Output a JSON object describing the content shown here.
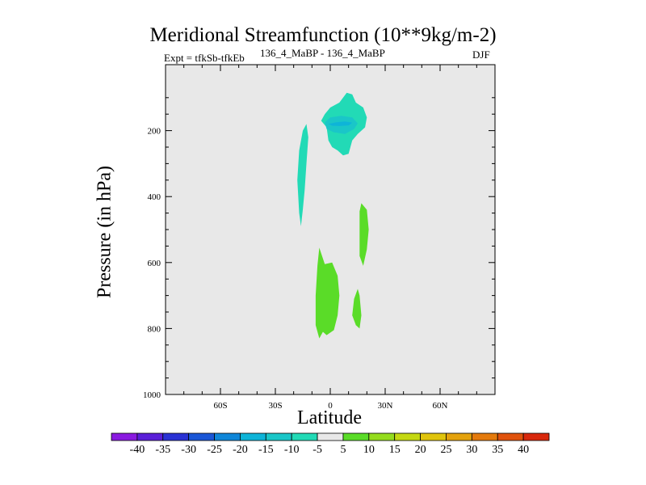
{
  "header": {
    "title": "Meridional Streamfunction (10**9kg/m-2)",
    "subtitle": "136_4_MaBP - 136_4_MaBP",
    "experiment": "Expt = tfkSb-tfkEb",
    "season": "DJF"
  },
  "colors": {
    "background": "#e8e8e8",
    "neg_5_0": "#22dab6",
    "neg_10_5": "#1ac6c8",
    "neg_15_10": "#0eb4d8",
    "pos_5_10": "#5adc28"
  },
  "chart_data": {
    "type": "heatmap",
    "title": "Meridional Streamfunction (10**9kg/m-2)",
    "xlabel": "Latitude",
    "ylabel": "Pressure (in hPa)",
    "xlim": [
      -90,
      90
    ],
    "ylim": [
      1000,
      0
    ],
    "x_ticks": [
      -60,
      -30,
      0,
      30,
      60
    ],
    "x_tick_labels": [
      "60S",
      "30S",
      "0",
      "30N",
      "60N"
    ],
    "y_ticks": [
      200,
      400,
      600,
      800,
      1000
    ],
    "y_tick_labels": [
      "200",
      "400",
      "600",
      "800",
      "1000"
    ],
    "colorbar_levels": [
      -40,
      -35,
      -30,
      -25,
      -20,
      -15,
      -10,
      -5,
      5,
      10,
      15,
      20,
      25,
      30,
      35,
      40
    ],
    "colorbar_labels": [
      "-40",
      "-35",
      "-30",
      "-25",
      "-20",
      "-15",
      "-10",
      "-5",
      "5",
      "10",
      "15",
      "20",
      "25",
      "30",
      "35",
      "40"
    ],
    "colorbar_colors": [
      "#8a1ae0",
      "#5a1fd8",
      "#2a32d4",
      "#1a56d6",
      "#0f86d8",
      "#0eb4d8",
      "#1ac6c8",
      "#22dab6",
      "#e8e8e8",
      "#5adc28",
      "#94dc1e",
      "#c4d812",
      "#e0c40c",
      "#e4a20c",
      "#e47a0c",
      "#e0520c",
      "#d8280c"
    ],
    "regions": [
      {
        "category": "-5 to -10",
        "color_key": "neg_5_0",
        "points": [
          [
            -2,
            190
          ],
          [
            -5,
            170
          ],
          [
            -3,
            150
          ],
          [
            0,
            130
          ],
          [
            5,
            115
          ],
          [
            9,
            85
          ],
          [
            12,
            90
          ],
          [
            14,
            115
          ],
          [
            18,
            130
          ],
          [
            20,
            160
          ],
          [
            19,
            190
          ],
          [
            15,
            210
          ],
          [
            12,
            230
          ],
          [
            10,
            270
          ],
          [
            7,
            275
          ],
          [
            4,
            260
          ],
          [
            1,
            250
          ],
          [
            -1,
            230
          ]
        ]
      },
      {
        "category": "-10 to -15",
        "color_key": "neg_10_5",
        "points": [
          [
            -3,
            175
          ],
          [
            0,
            160
          ],
          [
            6,
            155
          ],
          [
            12,
            160
          ],
          [
            15,
            178
          ],
          [
            13,
            195
          ],
          [
            8,
            210
          ],
          [
            2,
            205
          ],
          [
            -2,
            195
          ]
        ]
      },
      {
        "category": "-15 to -20",
        "color_key": "neg_15_10",
        "points": [
          [
            -1,
            180
          ],
          [
            3,
            175
          ],
          [
            8,
            172
          ],
          [
            12,
            176
          ],
          [
            10,
            184
          ],
          [
            5,
            186
          ],
          [
            1,
            185
          ]
        ]
      },
      {
        "category": "-5 to -10",
        "color_key": "neg_5_0",
        "points": [
          [
            -13,
            180
          ],
          [
            -12,
            220
          ],
          [
            -13,
            300
          ],
          [
            -14,
            380
          ],
          [
            -15,
            440
          ],
          [
            -16,
            490
          ],
          [
            -17,
            450
          ],
          [
            -18,
            350
          ],
          [
            -17,
            260
          ],
          [
            -15,
            200
          ]
        ]
      },
      {
        "category": "5 to 10",
        "color_key": "pos_5_10",
        "points": [
          [
            17,
            420
          ],
          [
            20,
            440
          ],
          [
            21,
            500
          ],
          [
            20,
            560
          ],
          [
            18,
            610
          ],
          [
            16,
            580
          ],
          [
            16,
            500
          ],
          [
            16,
            445
          ]
        ]
      },
      {
        "category": "5 to 10",
        "color_key": "pos_5_10",
        "points": [
          [
            -6,
            555
          ],
          [
            -3,
            605
          ],
          [
            1,
            600
          ],
          [
            4,
            640
          ],
          [
            5,
            700
          ],
          [
            4,
            760
          ],
          [
            2,
            805
          ],
          [
            -2,
            820
          ],
          [
            -4,
            810
          ],
          [
            -6,
            830
          ],
          [
            -8,
            790
          ],
          [
            -8,
            700
          ],
          [
            -7,
            610
          ]
        ]
      },
      {
        "category": "5 to 10",
        "color_key": "pos_5_10",
        "points": [
          [
            15,
            680
          ],
          [
            16,
            700
          ],
          [
            17,
            760
          ],
          [
            16,
            800
          ],
          [
            14,
            790
          ],
          [
            12,
            760
          ],
          [
            13,
            710
          ]
        ]
      }
    ]
  }
}
